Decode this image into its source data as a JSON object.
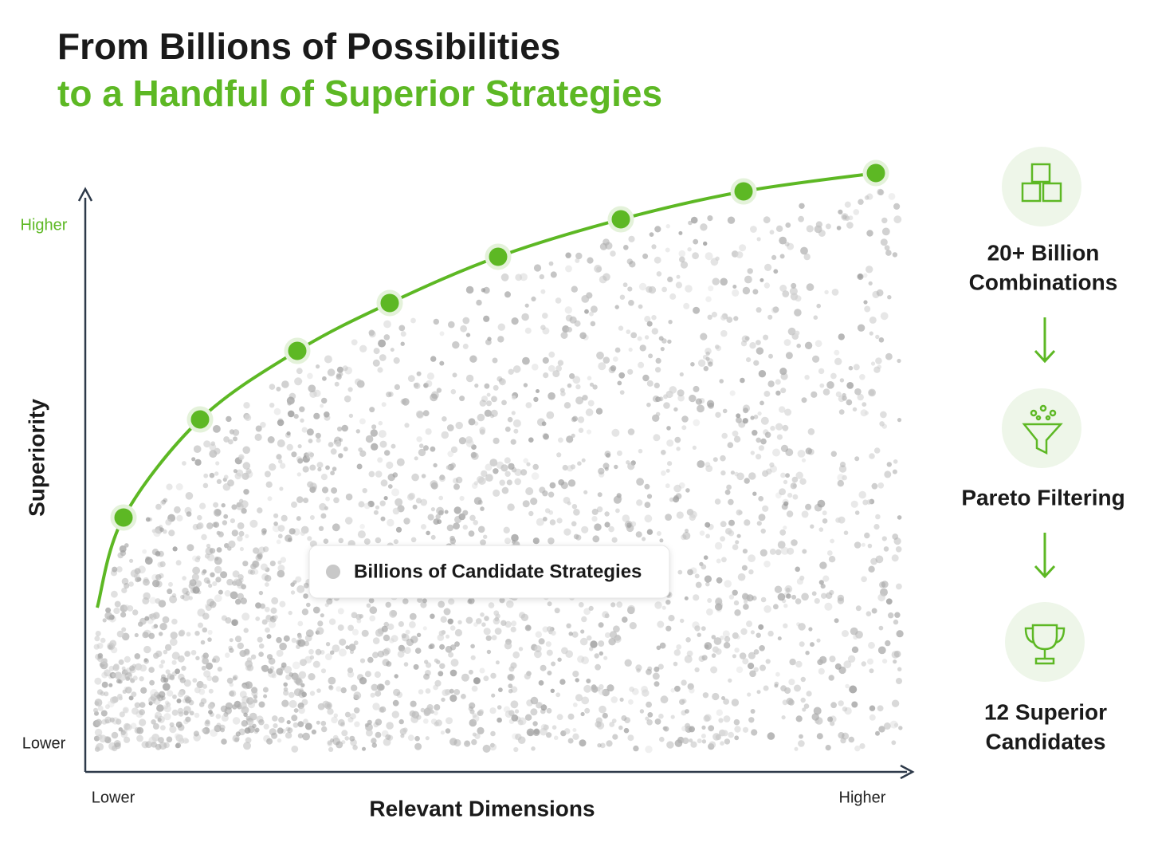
{
  "header": {
    "title_line1": "From Billions of Possibilities",
    "title_line2": "to a Handful of Superior Strategies"
  },
  "chart": {
    "y_axis_label": "Superiority",
    "y_high": "Higher",
    "y_low": "Lower",
    "x_axis_label": "Relevant Dimensions",
    "x_low": "Lower",
    "x_high": "Higher",
    "legend": "Billions of Candidate Strategies"
  },
  "steps": [
    {
      "label": [
        "20+ Billion",
        "Combinations"
      ]
    },
    {
      "label": [
        "Pareto Filtering"
      ]
    },
    {
      "label": [
        "12 Superior",
        "Candidates"
      ]
    }
  ]
}
